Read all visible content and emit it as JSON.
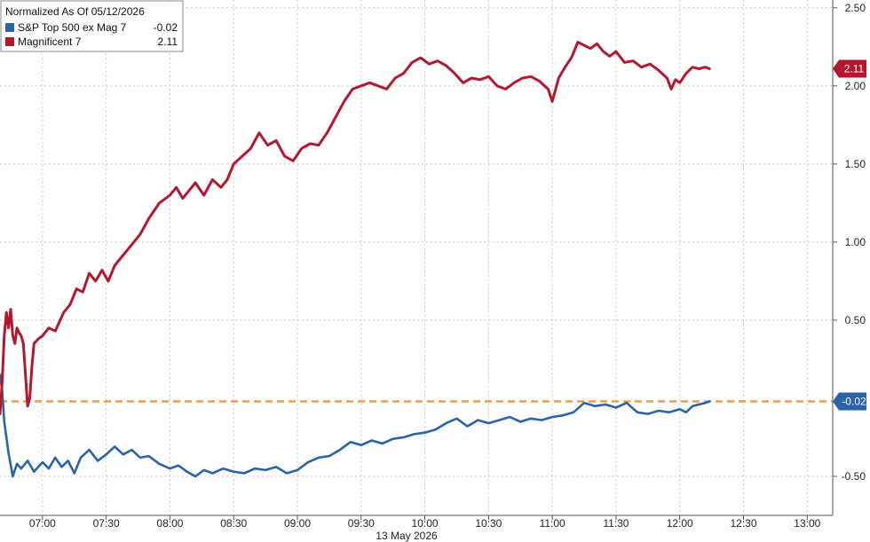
{
  "chart_data": {
    "type": "line",
    "title": "Normalized As Of 05/12/2026",
    "date_label": "13 May 2026",
    "x_ticks": [
      "07:00",
      "07:30",
      "08:00",
      "08:30",
      "09:00",
      "09:30",
      "10:00",
      "10:30",
      "11:00",
      "11:30",
      "12:00",
      "12:30",
      "13:00"
    ],
    "y_ticks": [
      "-0.50",
      "0.50",
      "1.00",
      "1.50",
      "2.00",
      "2.50"
    ],
    "ylim": [
      -0.75,
      2.55
    ],
    "xlim": [
      "06:40",
      "13:12"
    ],
    "grid": true,
    "legend_position": "top-left",
    "reference_line": {
      "value": -0.02,
      "color": "#f0a030"
    },
    "series": [
      {
        "name": "S&P Top 500 ex Mag 7",
        "last_label": "-0.02",
        "badge": "-0.02",
        "color": "#2a64a8",
        "points": [
          [
            "06:40",
            0.15
          ],
          [
            "06:41",
            0.05
          ],
          [
            "06:42",
            -0.15
          ],
          [
            "06:44",
            -0.35
          ],
          [
            "06:46",
            -0.5
          ],
          [
            "06:48",
            -0.42
          ],
          [
            "06:50",
            -0.45
          ],
          [
            "06:53",
            -0.4
          ],
          [
            "06:56",
            -0.47
          ],
          [
            "07:00",
            -0.41
          ],
          [
            "07:03",
            -0.45
          ],
          [
            "07:06",
            -0.38
          ],
          [
            "07:09",
            -0.44
          ],
          [
            "07:12",
            -0.4
          ],
          [
            "07:15",
            -0.48
          ],
          [
            "07:18",
            -0.38
          ],
          [
            "07:22",
            -0.33
          ],
          [
            "07:26",
            -0.4
          ],
          [
            "07:30",
            -0.36
          ],
          [
            "07:34",
            -0.31
          ],
          [
            "07:38",
            -0.36
          ],
          [
            "07:42",
            -0.33
          ],
          [
            "07:46",
            -0.38
          ],
          [
            "07:50",
            -0.37
          ],
          [
            "07:55",
            -0.42
          ],
          [
            "08:00",
            -0.45
          ],
          [
            "08:04",
            -0.43
          ],
          [
            "08:08",
            -0.47
          ],
          [
            "08:12",
            -0.5
          ],
          [
            "08:16",
            -0.46
          ],
          [
            "08:20",
            -0.48
          ],
          [
            "08:25",
            -0.45
          ],
          [
            "08:30",
            -0.47
          ],
          [
            "08:35",
            -0.48
          ],
          [
            "08:40",
            -0.45
          ],
          [
            "08:45",
            -0.46
          ],
          [
            "08:50",
            -0.44
          ],
          [
            "08:55",
            -0.48
          ],
          [
            "09:00",
            -0.46
          ],
          [
            "09:05",
            -0.41
          ],
          [
            "09:10",
            -0.38
          ],
          [
            "09:15",
            -0.37
          ],
          [
            "09:20",
            -0.33
          ],
          [
            "09:25",
            -0.28
          ],
          [
            "09:30",
            -0.3
          ],
          [
            "09:35",
            -0.27
          ],
          [
            "09:40",
            -0.29
          ],
          [
            "09:45",
            -0.26
          ],
          [
            "09:50",
            -0.25
          ],
          [
            "09:55",
            -0.23
          ],
          [
            "10:00",
            -0.22
          ],
          [
            "10:05",
            -0.2
          ],
          [
            "10:10",
            -0.16
          ],
          [
            "10:15",
            -0.13
          ],
          [
            "10:20",
            -0.18
          ],
          [
            "10:25",
            -0.14
          ],
          [
            "10:30",
            -0.16
          ],
          [
            "10:35",
            -0.14
          ],
          [
            "10:40",
            -0.12
          ],
          [
            "10:45",
            -0.15
          ],
          [
            "10:50",
            -0.13
          ],
          [
            "10:55",
            -0.14
          ],
          [
            "11:00",
            -0.12
          ],
          [
            "11:05",
            -0.11
          ],
          [
            "11:10",
            -0.09
          ],
          [
            "11:15",
            -0.03
          ],
          [
            "11:20",
            -0.05
          ],
          [
            "11:25",
            -0.04
          ],
          [
            "11:30",
            -0.06
          ],
          [
            "11:35",
            -0.03
          ],
          [
            "11:40",
            -0.09
          ],
          [
            "11:45",
            -0.1
          ],
          [
            "11:50",
            -0.08
          ],
          [
            "11:55",
            -0.09
          ],
          [
            "12:00",
            -0.07
          ],
          [
            "12:03",
            -0.09
          ],
          [
            "12:06",
            -0.05
          ],
          [
            "12:09",
            -0.04
          ],
          [
            "12:12",
            -0.03
          ],
          [
            "12:14",
            -0.02
          ]
        ]
      },
      {
        "name": "Magnificent 7",
        "last_label": "2.11",
        "badge": "2.11",
        "color": "#b5182e",
        "points": [
          [
            "06:40",
            -0.1
          ],
          [
            "06:41",
            0.1
          ],
          [
            "06:42",
            0.4
          ],
          [
            "06:43",
            0.55
          ],
          [
            "06:44",
            0.45
          ],
          [
            "06:45",
            0.57
          ],
          [
            "06:46",
            0.4
          ],
          [
            "06:47",
            0.35
          ],
          [
            "06:48",
            0.45
          ],
          [
            "06:49",
            0.42
          ],
          [
            "06:50",
            0.4
          ],
          [
            "06:51",
            0.35
          ],
          [
            "06:52",
            0.15
          ],
          [
            "06:53",
            -0.05
          ],
          [
            "06:54",
            0.0
          ],
          [
            "06:55",
            0.2
          ],
          [
            "06:56",
            0.35
          ],
          [
            "06:58",
            0.38
          ],
          [
            "07:00",
            0.4
          ],
          [
            "07:03",
            0.45
          ],
          [
            "07:06",
            0.43
          ],
          [
            "07:10",
            0.55
          ],
          [
            "07:13",
            0.6
          ],
          [
            "07:16",
            0.7
          ],
          [
            "07:19",
            0.68
          ],
          [
            "07:22",
            0.8
          ],
          [
            "07:25",
            0.75
          ],
          [
            "07:28",
            0.82
          ],
          [
            "07:31",
            0.75
          ],
          [
            "07:34",
            0.85
          ],
          [
            "07:37",
            0.9
          ],
          [
            "07:40",
            0.95
          ],
          [
            "07:43",
            1.0
          ],
          [
            "07:46",
            1.05
          ],
          [
            "07:50",
            1.15
          ],
          [
            "07:55",
            1.25
          ],
          [
            "08:00",
            1.3
          ],
          [
            "08:03",
            1.35
          ],
          [
            "08:06",
            1.28
          ],
          [
            "08:09",
            1.33
          ],
          [
            "08:12",
            1.38
          ],
          [
            "08:16",
            1.3
          ],
          [
            "08:20",
            1.4
          ],
          [
            "08:24",
            1.35
          ],
          [
            "08:27",
            1.4
          ],
          [
            "08:30",
            1.5
          ],
          [
            "08:34",
            1.55
          ],
          [
            "08:38",
            1.6
          ],
          [
            "08:42",
            1.7
          ],
          [
            "08:46",
            1.62
          ],
          [
            "08:50",
            1.65
          ],
          [
            "08:54",
            1.55
          ],
          [
            "08:58",
            1.52
          ],
          [
            "09:02",
            1.6
          ],
          [
            "09:06",
            1.63
          ],
          [
            "09:10",
            1.62
          ],
          [
            "09:14",
            1.7
          ],
          [
            "09:18",
            1.8
          ],
          [
            "09:22",
            1.9
          ],
          [
            "09:26",
            1.98
          ],
          [
            "09:30",
            2.0
          ],
          [
            "09:34",
            2.02
          ],
          [
            "09:38",
            2.0
          ],
          [
            "09:42",
            1.98
          ],
          [
            "09:46",
            2.05
          ],
          [
            "09:50",
            2.08
          ],
          [
            "09:54",
            2.15
          ],
          [
            "09:58",
            2.18
          ],
          [
            "10:02",
            2.14
          ],
          [
            "10:06",
            2.16
          ],
          [
            "10:10",
            2.13
          ],
          [
            "10:14",
            2.08
          ],
          [
            "10:18",
            2.02
          ],
          [
            "10:22",
            2.05
          ],
          [
            "10:26",
            2.04
          ],
          [
            "10:30",
            2.06
          ],
          [
            "10:34",
            2.0
          ],
          [
            "10:38",
            1.98
          ],
          [
            "10:42",
            2.02
          ],
          [
            "10:46",
            2.05
          ],
          [
            "10:50",
            2.06
          ],
          [
            "10:54",
            2.03
          ],
          [
            "10:58",
            1.98
          ],
          [
            "11:00",
            1.9
          ],
          [
            "11:03",
            2.05
          ],
          [
            "11:06",
            2.12
          ],
          [
            "11:09",
            2.18
          ],
          [
            "11:12",
            2.28
          ],
          [
            "11:15",
            2.26
          ],
          [
            "11:18",
            2.24
          ],
          [
            "11:21",
            2.27
          ],
          [
            "11:24",
            2.22
          ],
          [
            "11:27",
            2.19
          ],
          [
            "11:30",
            2.22
          ],
          [
            "11:34",
            2.15
          ],
          [
            "11:38",
            2.16
          ],
          [
            "11:42",
            2.12
          ],
          [
            "11:46",
            2.14
          ],
          [
            "11:50",
            2.1
          ],
          [
            "11:54",
            2.05
          ],
          [
            "11:56",
            1.98
          ],
          [
            "11:58",
            2.04
          ],
          [
            "12:00",
            2.02
          ],
          [
            "12:03",
            2.08
          ],
          [
            "12:06",
            2.12
          ],
          [
            "12:09",
            2.11
          ],
          [
            "12:12",
            2.12
          ],
          [
            "12:14",
            2.11
          ]
        ]
      }
    ]
  }
}
